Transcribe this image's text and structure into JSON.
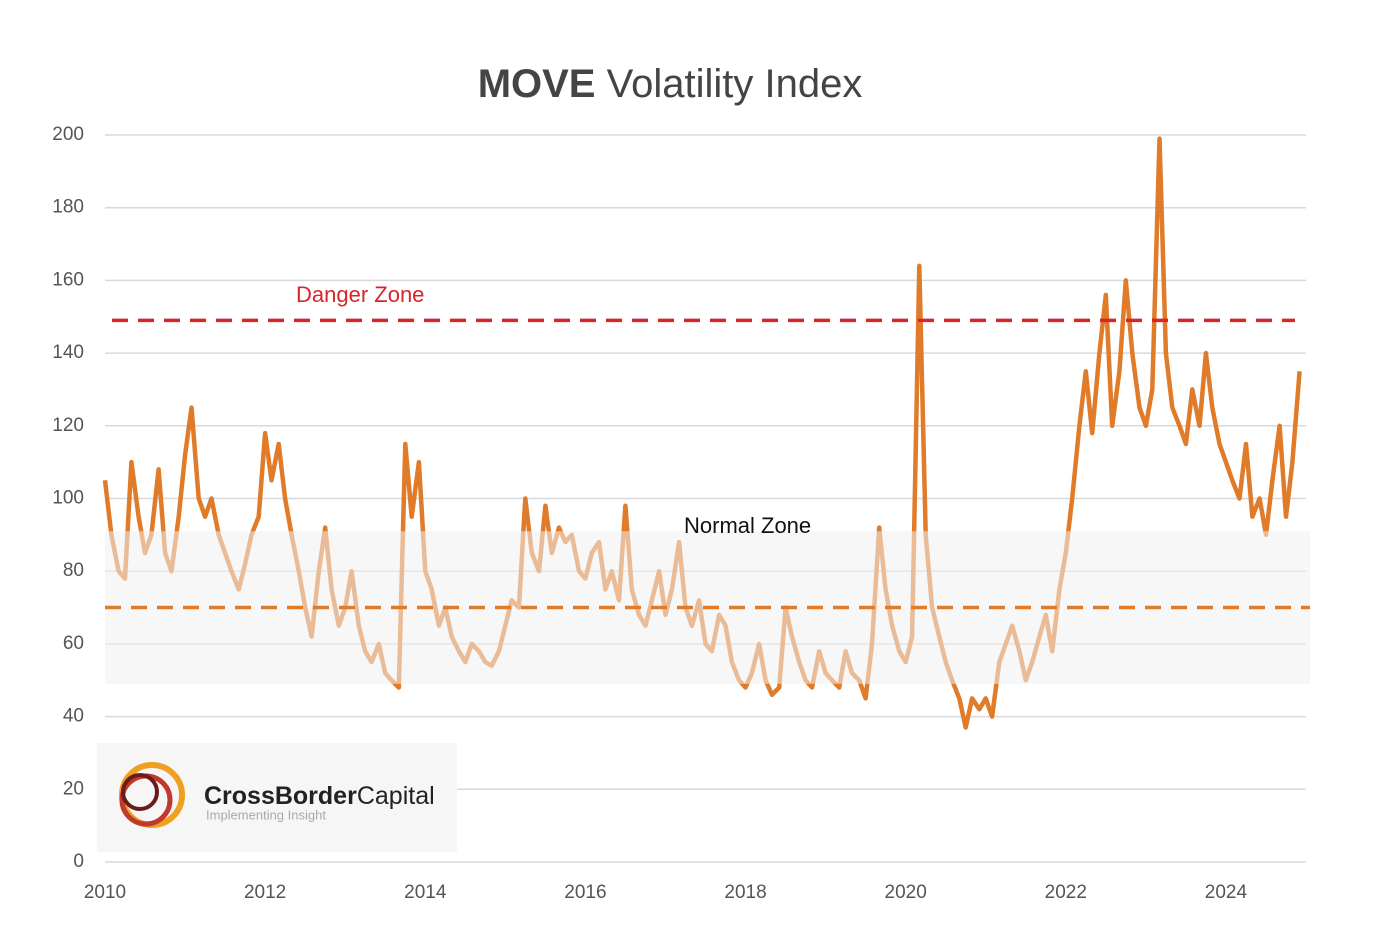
{
  "chart_data": {
    "type": "line",
    "title_bold": "MOVE",
    "title_rest": "Volatility Index",
    "x": [
      2010.0,
      2010.08,
      2010.17,
      2010.25,
      2010.33,
      2010.42,
      2010.5,
      2010.58,
      2010.67,
      2010.75,
      2010.83,
      2010.92,
      2011.0,
      2011.08,
      2011.17,
      2011.25,
      2011.33,
      2011.42,
      2011.5,
      2011.58,
      2011.67,
      2011.75,
      2011.83,
      2011.92,
      2012.0,
      2012.08,
      2012.17,
      2012.25,
      2012.33,
      2012.42,
      2012.5,
      2012.58,
      2012.67,
      2012.75,
      2012.83,
      2012.92,
      2013.0,
      2013.08,
      2013.17,
      2013.25,
      2013.33,
      2013.42,
      2013.5,
      2013.58,
      2013.67,
      2013.75,
      2013.83,
      2013.92,
      2014.0,
      2014.08,
      2014.17,
      2014.25,
      2014.33,
      2014.42,
      2014.5,
      2014.58,
      2014.67,
      2014.75,
      2014.83,
      2014.92,
      2015.0,
      2015.08,
      2015.17,
      2015.25,
      2015.33,
      2015.42,
      2015.5,
      2015.58,
      2015.67,
      2015.75,
      2015.83,
      2015.92,
      2016.0,
      2016.08,
      2016.17,
      2016.25,
      2016.33,
      2016.42,
      2016.5,
      2016.58,
      2016.67,
      2016.75,
      2016.83,
      2016.92,
      2017.0,
      2017.08,
      2017.17,
      2017.25,
      2017.33,
      2017.42,
      2017.5,
      2017.58,
      2017.67,
      2017.75,
      2017.83,
      2017.92,
      2018.0,
      2018.08,
      2018.17,
      2018.25,
      2018.33,
      2018.42,
      2018.5,
      2018.58,
      2018.67,
      2018.75,
      2018.83,
      2018.92,
      2019.0,
      2019.08,
      2019.17,
      2019.25,
      2019.33,
      2019.42,
      2019.5,
      2019.58,
      2019.67,
      2019.75,
      2019.83,
      2019.92,
      2020.0,
      2020.08,
      2020.17,
      2020.25,
      2020.33,
      2020.42,
      2020.5,
      2020.58,
      2020.67,
      2020.75,
      2020.83,
      2020.92,
      2021.0,
      2021.08,
      2021.17,
      2021.25,
      2021.33,
      2021.42,
      2021.5,
      2021.58,
      2021.67,
      2021.75,
      2021.83,
      2021.92,
      2022.0,
      2022.08,
      2022.17,
      2022.25,
      2022.33,
      2022.42,
      2022.5,
      2022.58,
      2022.67,
      2022.75,
      2022.83,
      2022.92,
      2023.0,
      2023.08,
      2023.17,
      2023.25,
      2023.33,
      2023.42,
      2023.5,
      2023.58,
      2023.67,
      2023.75,
      2023.83,
      2023.92,
      2024.0,
      2024.08,
      2024.17,
      2024.25,
      2024.33,
      2024.42,
      2024.5,
      2024.58,
      2024.67,
      2024.75,
      2024.83,
      2024.92
    ],
    "series": [
      {
        "name": "MOVE",
        "color": "#e07b2a",
        "values": [
          105,
          90,
          80,
          78,
          110,
          95,
          85,
          90,
          108,
          85,
          80,
          95,
          112,
          125,
          100,
          95,
          100,
          90,
          85,
          80,
          75,
          82,
          90,
          95,
          118,
          105,
          115,
          100,
          90,
          80,
          70,
          62,
          80,
          92,
          75,
          65,
          70,
          80,
          65,
          58,
          55,
          60,
          52,
          50,
          48,
          115,
          95,
          110,
          80,
          75,
          65,
          70,
          62,
          58,
          55,
          60,
          58,
          55,
          54,
          58,
          65,
          72,
          70,
          100,
          85,
          80,
          98,
          85,
          92,
          88,
          90,
          80,
          78,
          85,
          88,
          75,
          80,
          72,
          98,
          75,
          68,
          65,
          72,
          80,
          68,
          75,
          88,
          70,
          65,
          72,
          60,
          58,
          68,
          65,
          55,
          50,
          48,
          52,
          60,
          50,
          46,
          48,
          70,
          62,
          55,
          50,
          48,
          58,
          52,
          50,
          48,
          58,
          52,
          50,
          45,
          60,
          92,
          75,
          65,
          58,
          55,
          62,
          164,
          90,
          70,
          62,
          55,
          50,
          45,
          37,
          45,
          42,
          45,
          40,
          55,
          60,
          65,
          58,
          50,
          55,
          62,
          68,
          58,
          75,
          85,
          100,
          120,
          135,
          118,
          140,
          156,
          120,
          135,
          160,
          140,
          125,
          120,
          130,
          199,
          140,
          125,
          120,
          115,
          130,
          120,
          140,
          125,
          115,
          110,
          105,
          100,
          115,
          95,
          100,
          90,
          105,
          120,
          95,
          110,
          135
        ]
      }
    ],
    "xlim": [
      2010,
      2025
    ],
    "xticks": [
      2010,
      2012,
      2014,
      2016,
      2018,
      2020,
      2022,
      2024
    ],
    "ylim": [
      0,
      200
    ],
    "yticks": [
      0,
      20,
      40,
      60,
      80,
      100,
      120,
      140,
      160,
      180,
      200
    ],
    "grid": true,
    "zones": [
      {
        "text": "Danger Zone",
        "value": 149,
        "color": "#d9252a"
      },
      {
        "text": "Normal Zone",
        "value": 70,
        "color": "#e07b2a",
        "band": [
          49,
          91
        ]
      }
    ]
  },
  "logo": {
    "name_bold": "CrossBorder",
    "name_rest": "Capital",
    "tagline": "Implementing Insight"
  }
}
